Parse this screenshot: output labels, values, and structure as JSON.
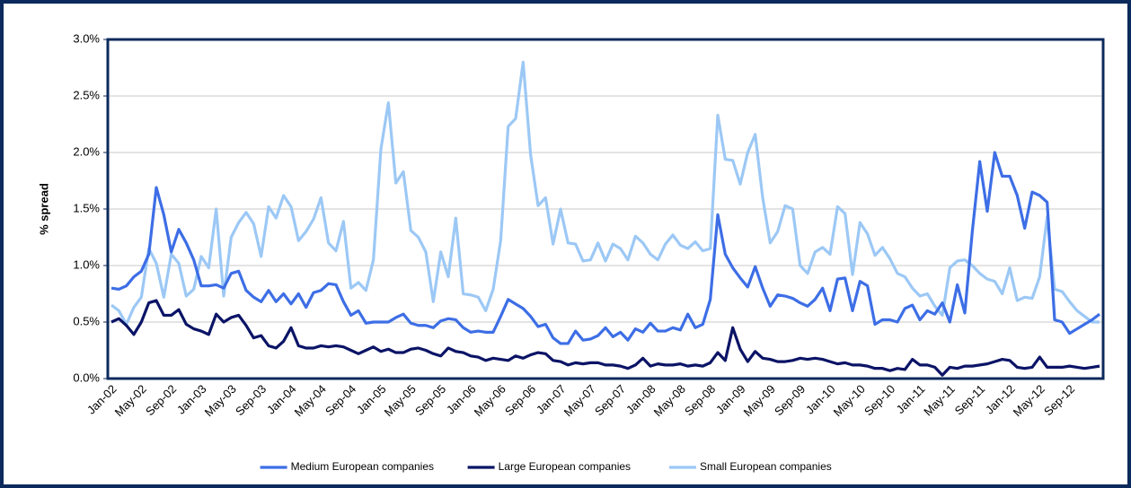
{
  "chart_data": {
    "type": "line",
    "y_label": "% spread",
    "ylim": [
      0,
      3
    ],
    "yticks": [
      {
        "value": 0,
        "label": "0.0%"
      },
      {
        "value": 0.5,
        "label": "0.5%"
      },
      {
        "value": 1,
        "label": "1.0%"
      },
      {
        "value": 1.5,
        "label": "1.5%"
      },
      {
        "value": 2,
        "label": "2.0%"
      },
      {
        "value": 2.5,
        "label": "2.5%"
      },
      {
        "value": 3,
        "label": "3.0%"
      }
    ],
    "grid": true,
    "legend": "bottom",
    "categories": [
      "Jan-02",
      null,
      null,
      null,
      "May-02",
      null,
      null,
      null,
      "Sep-02",
      null,
      null,
      null,
      "Jan-03",
      null,
      null,
      null,
      "May-03",
      null,
      null,
      null,
      "Sep-03",
      null,
      null,
      null,
      "Jan-04",
      null,
      null,
      null,
      "May-04",
      null,
      null,
      null,
      "Sep-04",
      null,
      null,
      null,
      "Jan-05",
      null,
      null,
      null,
      "May-05",
      null,
      null,
      null,
      "Sep-05",
      null,
      null,
      null,
      "Jan-06",
      null,
      null,
      null,
      "May-06",
      null,
      null,
      null,
      "Sep-06",
      null,
      null,
      null,
      "Jan-07",
      null,
      null,
      null,
      "May-07",
      null,
      null,
      null,
      "Sep-07",
      null,
      null,
      null,
      "Jan-08",
      null,
      null,
      null,
      "May-08",
      null,
      null,
      null,
      "Sep-08",
      null,
      null,
      null,
      "Jan-09",
      null,
      null,
      null,
      "May-09",
      null,
      null,
      null,
      "Sep-09",
      null,
      null,
      null,
      "Jan-10",
      null,
      null,
      null,
      "May-10",
      null,
      null,
      null,
      "Sep-10",
      null,
      null,
      null,
      "Jan-11",
      null,
      null,
      null,
      "May-11",
      null,
      null,
      null,
      "Sep-11",
      null,
      null,
      null,
      "Jan-12",
      null,
      null,
      null,
      "May-12",
      null,
      null,
      null,
      "Sep-12",
      null,
      null,
      null,
      null
    ],
    "series": [
      {
        "name": "Medium European companies",
        "color": "#3d6ee6",
        "values": [
          0.8,
          0.79,
          0.82,
          0.9,
          0.95,
          1.1,
          1.69,
          1.45,
          1.12,
          1.32,
          1.2,
          1.05,
          0.82,
          0.82,
          0.83,
          0.8,
          0.93,
          0.95,
          0.78,
          0.72,
          0.68,
          0.78,
          0.68,
          0.75,
          0.66,
          0.75,
          0.63,
          0.76,
          0.78,
          0.84,
          0.83,
          0.68,
          0.56,
          0.6,
          0.49,
          0.5,
          0.5,
          0.5,
          0.54,
          0.57,
          0.49,
          0.47,
          0.47,
          0.45,
          0.51,
          0.53,
          0.52,
          0.45,
          0.41,
          0.42,
          0.41,
          0.41,
          0.55,
          0.7,
          0.66,
          0.62,
          0.55,
          0.46,
          0.48,
          0.36,
          0.31,
          0.31,
          0.42,
          0.34,
          0.35,
          0.38,
          0.45,
          0.37,
          0.41,
          0.34,
          0.44,
          0.41,
          0.49,
          0.42,
          0.42,
          0.45,
          0.43,
          0.57,
          0.45,
          0.48,
          0.7,
          1.45,
          1.1,
          0.98,
          0.89,
          0.81,
          0.99,
          0.8,
          0.64,
          0.74,
          0.73,
          0.71,
          0.67,
          0.64,
          0.7,
          0.8,
          0.6,
          0.88,
          0.89,
          0.6,
          0.86,
          0.82,
          0.48,
          0.52,
          0.52,
          0.5,
          0.62,
          0.65,
          0.52,
          0.6,
          0.57,
          0.67,
          0.5,
          0.83,
          0.58,
          1.3,
          1.92,
          1.48,
          2.0,
          1.79,
          1.79,
          1.62,
          1.33,
          1.65,
          1.62,
          1.56,
          0.52,
          0.5,
          0.4,
          0.44,
          0.48,
          0.52,
          0.57
        ]
      },
      {
        "name": "Large European companies",
        "color": "#0b1466",
        "values": [
          0.5,
          0.53,
          0.47,
          0.39,
          0.5,
          0.67,
          0.69,
          0.56,
          0.56,
          0.61,
          0.48,
          0.44,
          0.42,
          0.39,
          0.57,
          0.5,
          0.54,
          0.56,
          0.47,
          0.36,
          0.38,
          0.29,
          0.27,
          0.33,
          0.45,
          0.29,
          0.27,
          0.27,
          0.29,
          0.28,
          0.29,
          0.28,
          0.25,
          0.22,
          0.25,
          0.28,
          0.24,
          0.26,
          0.23,
          0.23,
          0.26,
          0.27,
          0.25,
          0.22,
          0.2,
          0.27,
          0.24,
          0.23,
          0.2,
          0.19,
          0.16,
          0.18,
          0.17,
          0.16,
          0.2,
          0.18,
          0.21,
          0.23,
          0.22,
          0.16,
          0.15,
          0.12,
          0.14,
          0.13,
          0.14,
          0.14,
          0.12,
          0.12,
          0.11,
          0.09,
          0.12,
          0.18,
          0.11,
          0.13,
          0.12,
          0.12,
          0.13,
          0.11,
          0.12,
          0.11,
          0.14,
          0.23,
          0.16,
          0.45,
          0.26,
          0.15,
          0.24,
          0.18,
          0.17,
          0.15,
          0.15,
          0.16,
          0.18,
          0.17,
          0.18,
          0.17,
          0.15,
          0.13,
          0.14,
          0.12,
          0.12,
          0.11,
          0.09,
          0.09,
          0.07,
          0.09,
          0.08,
          0.17,
          0.12,
          0.12,
          0.1,
          0.03,
          0.1,
          0.09,
          0.11,
          0.11,
          0.12,
          0.13,
          0.15,
          0.17,
          0.16,
          0.1,
          0.09,
          0.1,
          0.19,
          0.1,
          0.1,
          0.1,
          0.11,
          0.1,
          0.09,
          0.1,
          0.11
        ]
      },
      {
        "name": "Small European companies",
        "color": "#9cc8f5",
        "values": [
          0.65,
          0.6,
          0.48,
          0.63,
          0.72,
          1.15,
          1.02,
          0.72,
          1.1,
          1.02,
          0.73,
          0.79,
          1.08,
          0.98,
          1.5,
          0.73,
          1.25,
          1.38,
          1.47,
          1.37,
          1.08,
          1.52,
          1.42,
          1.62,
          1.52,
          1.22,
          1.3,
          1.41,
          1.6,
          1.2,
          1.13,
          1.39,
          0.8,
          0.85,
          0.78,
          1.05,
          2.03,
          2.44,
          1.73,
          1.83,
          1.31,
          1.25,
          1.12,
          0.68,
          1.12,
          0.9,
          1.42,
          0.75,
          0.74,
          0.72,
          0.6,
          0.79,
          1.22,
          2.23,
          2.3,
          2.8,
          1.98,
          1.53,
          1.6,
          1.19,
          1.5,
          1.2,
          1.19,
          1.04,
          1.05,
          1.2,
          1.04,
          1.19,
          1.15,
          1.05,
          1.26,
          1.2,
          1.1,
          1.05,
          1.19,
          1.27,
          1.18,
          1.15,
          1.21,
          1.13,
          1.15,
          2.33,
          1.94,
          1.93,
          1.72,
          2.0,
          2.16,
          1.6,
          1.2,
          1.3,
          1.53,
          1.5,
          1.0,
          0.93,
          1.12,
          1.16,
          1.1,
          1.52,
          1.46,
          0.92,
          1.38,
          1.28,
          1.09,
          1.16,
          1.06,
          0.93,
          0.9,
          0.8,
          0.73,
          0.75,
          0.64,
          0.56,
          0.98,
          1.04,
          1.05,
          1.0,
          0.93,
          0.88,
          0.86,
          0.75,
          0.98,
          0.69,
          0.72,
          0.71,
          0.9,
          1.43,
          0.79,
          0.77,
          0.68,
          0.6,
          0.55,
          0.5,
          0.5
        ]
      }
    ]
  }
}
